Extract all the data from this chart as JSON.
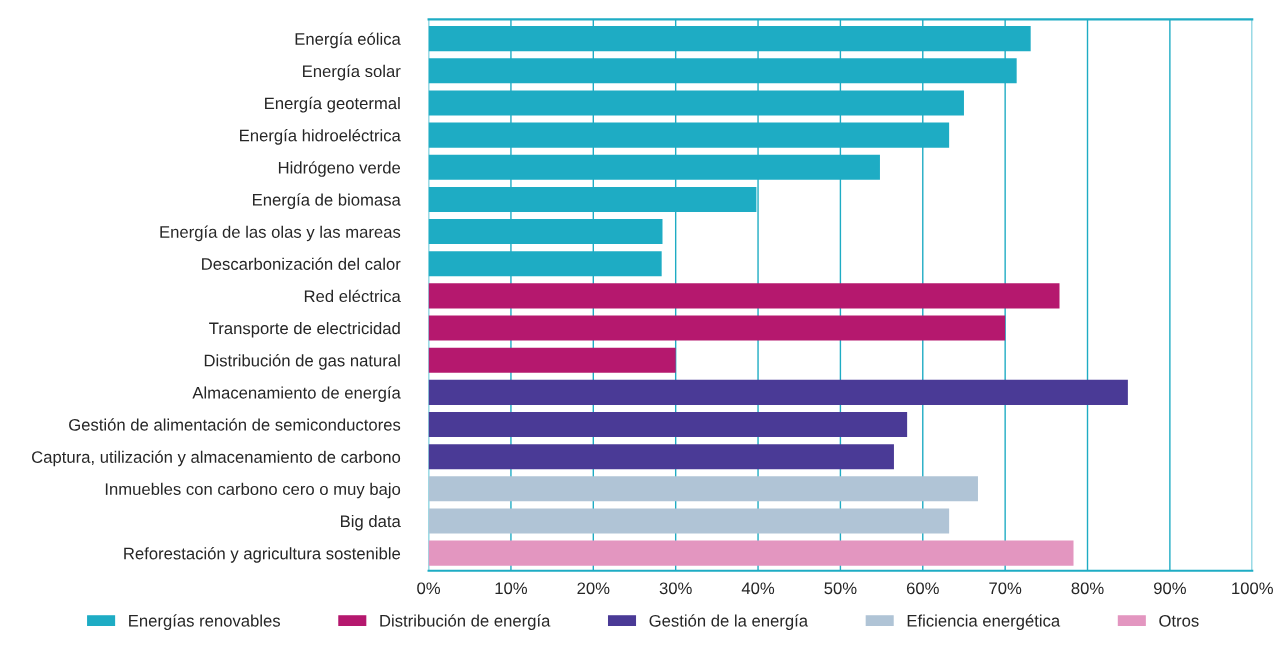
{
  "chart_data": {
    "type": "bar",
    "orientation": "horizontal",
    "categories": [
      "Energía eólica",
      "Energía solar",
      "Energía geotermal",
      "Energía hidroeléctrica",
      "Hidrógeno verde",
      "Energía de biomasa",
      "Energía de las olas y las mareas",
      "Descarbonización del calor",
      "Red eléctrica",
      "Transporte de electricidad",
      "Distribución de gas natural",
      "Almacenamiento de energía",
      "Gestión de alimentación de semiconductores",
      "Captura, utilización y almacenamiento de carbono",
      "Inmuebles con carbono cero o muy bajo",
      "Big data",
      "Reforestación y agricultura sostenible"
    ],
    "series": [
      {
        "name": "Energías renovables",
        "color": "#1eacc4",
        "values": [
          73.1,
          71.4,
          65.0,
          63.2,
          54.8,
          39.8,
          28.4,
          28.3,
          null,
          null,
          null,
          null,
          null,
          null,
          null,
          null,
          null
        ]
      },
      {
        "name": "Distribución de energía",
        "color": "#b5186e",
        "values": [
          null,
          null,
          null,
          null,
          null,
          null,
          null,
          null,
          76.6,
          70.0,
          30.0,
          null,
          null,
          null,
          null,
          null,
          null
        ]
      },
      {
        "name": "Gestión de la energía",
        "color": "#4a3a96",
        "values": [
          null,
          null,
          null,
          null,
          null,
          null,
          null,
          null,
          null,
          null,
          null,
          84.9,
          58.1,
          56.5,
          null,
          null,
          null
        ]
      },
      {
        "name": "Eficiencia energética",
        "color": "#b0c4d6",
        "values": [
          null,
          null,
          null,
          null,
          null,
          null,
          null,
          null,
          null,
          null,
          null,
          null,
          null,
          null,
          66.7,
          63.2,
          null
        ]
      },
      {
        "name": "Otros",
        "color": "#e396c0",
        "values": [
          null,
          null,
          null,
          null,
          null,
          null,
          null,
          null,
          null,
          null,
          null,
          null,
          null,
          null,
          null,
          null,
          78.3
        ]
      }
    ],
    "xlim": [
      0,
      100
    ],
    "xticks": [
      {
        "value": 0,
        "label": "0%"
      },
      {
        "value": 10,
        "label": "10%"
      },
      {
        "value": 20,
        "label": "20%"
      },
      {
        "value": 30,
        "label": "30%"
      },
      {
        "value": 40,
        "label": "40%"
      },
      {
        "value": 50,
        "label": "50%"
      },
      {
        "value": 60,
        "label": "60%"
      },
      {
        "value": 70,
        "label": "70%"
      },
      {
        "value": 80,
        "label": "80%"
      },
      {
        "value": 90,
        "label": "90%"
      },
      {
        "value": 100,
        "label": "100%"
      }
    ],
    "grid": "x",
    "legend": "bottom"
  }
}
